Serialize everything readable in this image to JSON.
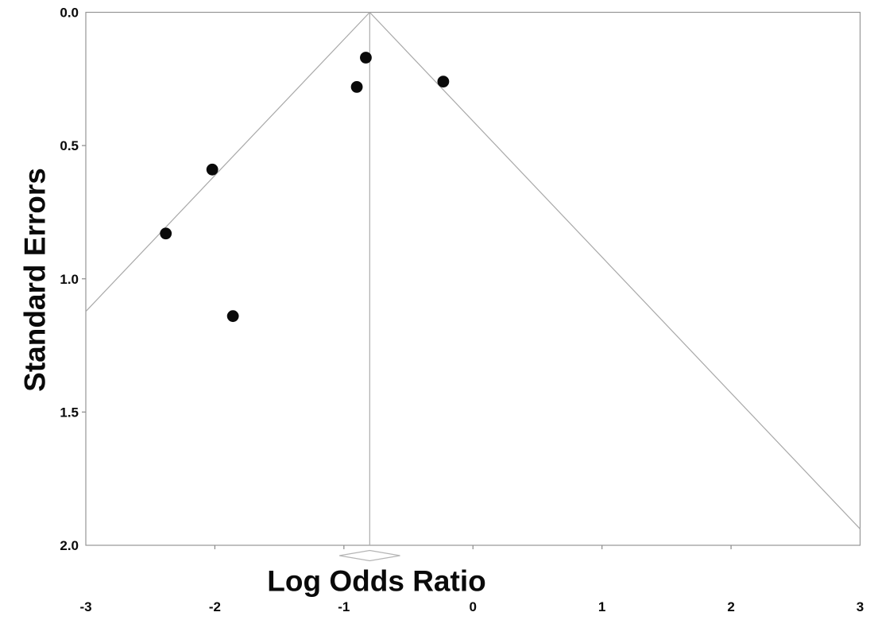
{
  "chart_data": {
    "type": "scatter",
    "subtype": "funnel_plot",
    "title": "",
    "xlabel": "Log Odds Ratio",
    "ylabel": "Standard Errors",
    "xlim": [
      -3,
      3
    ],
    "ylim": [
      0,
      2
    ],
    "y_axis_inverted": true,
    "grid": false,
    "legend": "none",
    "x_ticks": [
      -3,
      -2,
      -1,
      0,
      1,
      2,
      3
    ],
    "x_tick_labels": [
      "-3",
      "-2",
      "-1",
      "0",
      "1",
      "2",
      "3"
    ],
    "x_inner_ticks": [
      -2,
      -1,
      0,
      1,
      2
    ],
    "y_ticks": [
      0.0,
      0.5,
      1.0,
      1.5,
      2.0
    ],
    "y_tick_labels": [
      "0.0",
      "0.5",
      "1.0",
      "1.5",
      "2.0"
    ],
    "y_inner_ticks": [
      0.5,
      1.0,
      1.5
    ],
    "points": [
      {
        "x": -0.83,
        "y": 0.17
      },
      {
        "x": -0.9,
        "y": 0.28
      },
      {
        "x": -0.23,
        "y": 0.26
      },
      {
        "x": -2.02,
        "y": 0.59
      },
      {
        "x": -2.38,
        "y": 0.83
      },
      {
        "x": -1.86,
        "y": 1.14
      }
    ],
    "pooled_estimate": -0.8,
    "funnel_ci_multiplier": 1.96,
    "diamond": {
      "center": -0.8,
      "left": -1.035,
      "right": -0.565
    },
    "colors": {
      "point": "#0a0a0a",
      "funnel_line": "#a8a8a8",
      "pooled_line": "#ababab",
      "plot_border": "#979797",
      "tick": "#8a8a8a",
      "diamond_stroke": "#b5b5b5",
      "text": "#0a0a0a",
      "background": "#ffffff"
    }
  }
}
